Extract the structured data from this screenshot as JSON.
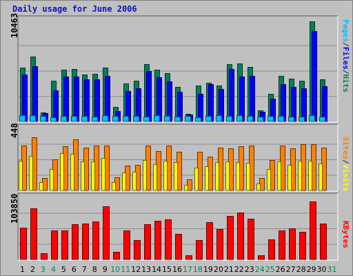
{
  "chart_data": {
    "type": "bar",
    "title": "Daily usage for June 2006",
    "categories": [
      "1",
      "2",
      "3",
      "4",
      "5",
      "6",
      "7",
      "8",
      "9",
      "10",
      "11",
      "12",
      "13",
      "14",
      "15",
      "16",
      "17",
      "18",
      "19",
      "20",
      "21",
      "22",
      "23",
      "24",
      "25",
      "26",
      "27",
      "28",
      "29",
      "30",
      "31"
    ],
    "weekend_days": [
      "3",
      "4",
      "10",
      "11",
      "17",
      "18",
      "24",
      "25",
      "31"
    ],
    "panels": [
      {
        "name": "hits-files-pages",
        "max_label": "10463",
        "ylim": [
          0,
          10463
        ],
        "right_label": [
          "Pages",
          "Files",
          "Hits"
        ],
        "series": [
          {
            "name": "Hits",
            "color": "#00805a",
            "values": [
              5580,
              6680,
              920,
              4180,
              5320,
              5380,
              4850,
              4890,
              5570,
              1520,
              3910,
              4180,
              5900,
              5360,
              4950,
              3580,
              780,
              3670,
              4000,
              3710,
              5920,
              6000,
              5610,
              1170,
              2830,
              4710,
              4380,
              4190,
              10300,
              4320,
              0
            ]
          },
          {
            "name": "Files",
            "color": "#0000ff",
            "values": [
              4820,
              5710,
              820,
              3170,
              4640,
              4650,
              4340,
              4340,
              4690,
              1090,
              3130,
              3390,
              5200,
              4560,
              4120,
              3070,
              700,
              2840,
              3820,
              3350,
              5380,
              4630,
              4700,
              1000,
              2370,
              3840,
              3580,
              3390,
              9340,
              3620,
              0
            ]
          },
          {
            "name": "Pages",
            "color": "#00bfff",
            "values": [
              630,
              660,
              580,
              450,
              570,
              560,
              560,
              470,
              620,
              570,
              560,
              560,
              520,
              620,
              570,
              500,
              560,
              450,
              560,
              620,
              600,
              670,
              550,
              480,
              570,
              540,
              490,
              530,
              660,
              520,
              0
            ]
          }
        ]
      },
      {
        "name": "sites-visits",
        "max_label": "448",
        "ylim": [
          0,
          448
        ],
        "right_label": [
          "Sites",
          "Visits"
        ],
        "series": [
          {
            "name": "Sites",
            "color": "#ff8000",
            "values": [
              325,
              383,
              88,
              225,
              319,
              368,
              308,
              325,
              325,
              93,
              180,
              182,
              325,
              285,
              325,
              278,
              80,
              280,
              245,
              310,
              305,
              318,
              325,
              88,
              218,
              324,
              305,
              335,
              335,
              308,
              0
            ]
          },
          {
            "name": "Visits",
            "color": "#ffff00",
            "values": [
              213,
              250,
              58,
              152,
              268,
              265,
              208,
              208,
              235,
              60,
              130,
              135,
              220,
              188,
              212,
              205,
              40,
              165,
              175,
              202,
              208,
              205,
              200,
              50,
              152,
              208,
              185,
              212,
              212,
              192,
              0
            ]
          }
        ]
      },
      {
        "name": "kbytes",
        "max_label": "103850",
        "ylim": [
          0,
          103850
        ],
        "right_label": [
          "KBytes"
        ],
        "series": [
          {
            "name": "KBytes",
            "color": "#ff0000",
            "values": [
              52800,
              85500,
              10900,
              48300,
              48300,
              58300,
              59800,
              64000,
              88800,
              12600,
              48000,
              32600,
              58700,
              64300,
              66900,
              42400,
              6700,
              32200,
              62800,
              51300,
              72800,
              78200,
              68600,
              7200,
              33000,
              48300,
              51800,
              46100,
              96800,
              60200,
              0
            ]
          }
        ]
      }
    ]
  }
}
